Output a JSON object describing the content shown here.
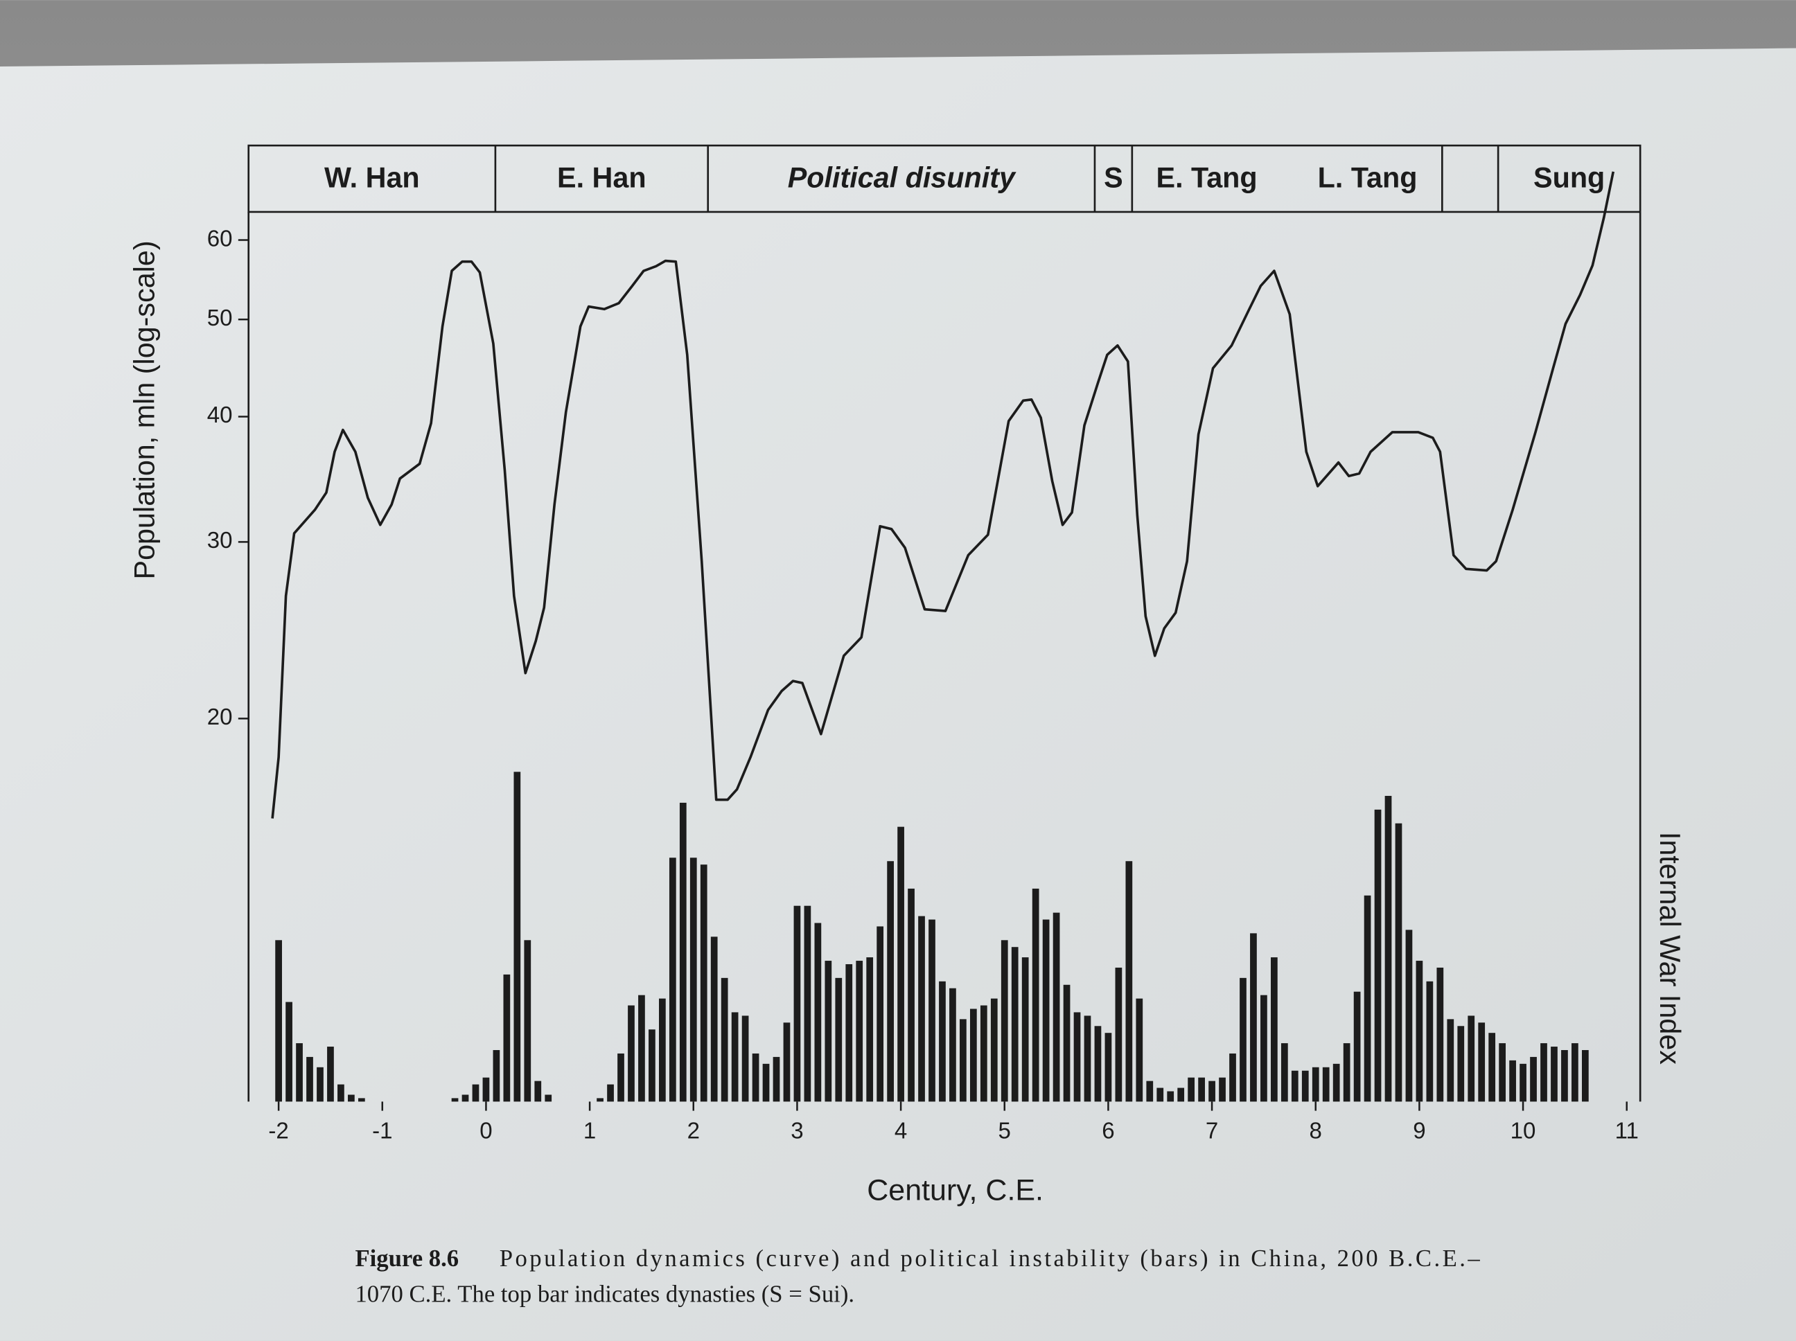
{
  "chart_data": [
    {
      "type": "line",
      "color": "#1c1c1c",
      "log_y": true,
      "y_label": "Population, mln (log-scale)",
      "x_label": "Century, C.E.",
      "xlim": [
        -2.29,
        11.13
      ],
      "ylim": [
        8.3,
        64
      ],
      "xticks": [
        -2,
        -1,
        0,
        1,
        2,
        3,
        4,
        5,
        6,
        7,
        8,
        9,
        10,
        11
      ],
      "yticks": [
        20,
        30,
        40,
        50,
        60
      ],
      "x": [
        -2.06,
        -2.0,
        -1.93,
        -1.85,
        -1.65,
        -1.54,
        -1.46,
        -1.38,
        -1.26,
        -1.14,
        -1.02,
        -0.91,
        -0.83,
        -0.64,
        -0.53,
        -0.42,
        -0.33,
        -0.23,
        -0.14,
        -0.06,
        0.07,
        0.18,
        0.27,
        0.38,
        0.48,
        0.56,
        0.66,
        0.77,
        0.91,
        0.99,
        1.14,
        1.28,
        1.41,
        1.52,
        1.64,
        1.73,
        1.83,
        1.94,
        2.08,
        2.22,
        2.33,
        2.42,
        2.55,
        2.72,
        2.85,
        2.96,
        3.05,
        3.23,
        3.45,
        3.62,
        3.8,
        3.91,
        4.04,
        4.23,
        4.43,
        4.65,
        4.84,
        5.04,
        5.18,
        5.26,
        5.35,
        5.46,
        5.56,
        5.65,
        5.77,
        5.9,
        5.99,
        6.09,
        6.19,
        6.28,
        6.36,
        6.45,
        6.54,
        6.65,
        6.76,
        6.87,
        7.01,
        7.19,
        7.36,
        7.47,
        7.6,
        7.75,
        7.91,
        8.02,
        8.22,
        8.32,
        8.42,
        8.53,
        8.74,
        8.99,
        9.13,
        9.2,
        9.33,
        9.45,
        9.65,
        9.74,
        9.9,
        10.12,
        10.29,
        10.41,
        10.55,
        10.67,
        10.78,
        10.87
      ],
      "values": [
        15.9,
        18.3,
        26.5,
        30.6,
        32.3,
        33.6,
        36.9,
        38.8,
        36.9,
        33.2,
        31.2,
        32.7,
        34.7,
        35.9,
        39.4,
        49.2,
        55.9,
        57.1,
        57.1,
        55.7,
        47.3,
        35.4,
        26.5,
        22.2,
        23.9,
        25.8,
        32.7,
        40.4,
        49.2,
        51.5,
        51.2,
        51.9,
        54.0,
        55.9,
        56.5,
        57.2,
        57.1,
        46.1,
        28.7,
        16.6,
        16.6,
        17.0,
        18.3,
        20.4,
        21.3,
        21.8,
        21.7,
        19.3,
        23.1,
        24.1,
        31.1,
        30.9,
        29.6,
        25.7,
        25.6,
        29.1,
        30.5,
        39.6,
        41.5,
        41.6,
        39.9,
        34.5,
        31.2,
        32.1,
        39.2,
        43.2,
        46.1,
        47.1,
        45.4,
        31.9,
        25.3,
        23.1,
        24.6,
        25.5,
        28.7,
        38.4,
        44.7,
        47.1,
        51.2,
        54.0,
        55.9,
        50.6,
        36.9,
        34.1,
        36.0,
        34.9,
        35.1,
        36.9,
        38.6,
        38.6,
        38.1,
        36.9,
        29.1,
        28.2,
        28.1,
        28.7,
        32.3,
        38.6,
        44.7,
        49.5,
        52.9,
        56.6,
        63.2,
        70.2
      ],
      "dividers": [
        0.09,
        2.14,
        5.87,
        6.23,
        9.22,
        9.76
      ],
      "dynasties": [
        {
          "label": "W. Han",
          "start": -2.29,
          "end": 0.09
        },
        {
          "label": "E. Han",
          "start": 0.09,
          "end": 2.14
        },
        {
          "label": "Political disunity",
          "start": 2.14,
          "end": 5.87,
          "italic": true
        },
        {
          "label": "S",
          "start": 5.87,
          "end": 6.23
        },
        {
          "label": "E. Tang",
          "start": 6.23,
          "end": 7.67
        },
        {
          "label": "L. Tang",
          "start": 7.78,
          "end": 9.22
        },
        {
          "label": "Sung",
          "start": 9.76,
          "end": 11.13
        }
      ]
    },
    {
      "type": "bar",
      "color": "#1c1c1c",
      "y_label": "Internal War Index",
      "xlim": [
        -2.29,
        11.13
      ],
      "ylim": [
        0,
        259
      ],
      "x": [
        -2,
        -1.9,
        -1.8,
        -1.7,
        -1.6,
        -1.5,
        -1.4,
        -1.3,
        -1.2,
        -1.1,
        -1,
        -0.9,
        -0.8,
        -0.7,
        -0.6,
        -0.5,
        -0.4,
        -0.3,
        -0.2,
        -0.1,
        0,
        0.1,
        0.2,
        0.3,
        0.4,
        0.5,
        0.6,
        0.7,
        0.8,
        0.9,
        1,
        1.1,
        1.2,
        1.3,
        1.4,
        1.5,
        1.6,
        1.7,
        1.8,
        1.9,
        2,
        2.1,
        2.2,
        2.3,
        2.4,
        2.5,
        2.6,
        2.7,
        2.8,
        2.9,
        3,
        3.1,
        3.2,
        3.3,
        3.4,
        3.5,
        3.6,
        3.7,
        3.8,
        3.9,
        4,
        4.1,
        4.2,
        4.3,
        4.4,
        4.5,
        4.6,
        4.7,
        4.8,
        4.9,
        5,
        5.1,
        5.2,
        5.3,
        5.4,
        5.5,
        5.6,
        5.7,
        5.8,
        5.9,
        6,
        6.1,
        6.2,
        6.3,
        6.4,
        6.5,
        6.6,
        6.7,
        6.8,
        6.9,
        7,
        7.1,
        7.2,
        7.3,
        7.4,
        7.5,
        7.6,
        7.7,
        7.8,
        7.9,
        8,
        8.1,
        8.2,
        8.3,
        8.4,
        8.5,
        8.6,
        8.7,
        8.8,
        8.9,
        9,
        9.1,
        9.2,
        9.3,
        9.4,
        9.5,
        9.6,
        9.7,
        9.8,
        9.9,
        10,
        10.1,
        10.2,
        10.3,
        10.4,
        10.5,
        10.6
      ],
      "values": [
        47,
        29,
        17,
        13,
        10,
        16,
        5,
        2,
        1,
        0,
        0,
        0,
        0,
        0,
        0,
        0,
        0,
        1,
        2,
        5,
        7,
        15,
        37,
        96,
        47,
        6,
        2,
        0,
        0,
        0,
        0,
        1,
        5,
        14,
        28,
        31,
        21,
        30,
        71,
        87,
        71,
        69,
        48,
        36,
        26,
        25,
        14,
        11,
        13,
        23,
        57,
        57,
        52,
        41,
        36,
        40,
        41,
        42,
        51,
        70,
        80,
        62,
        54,
        53,
        35,
        33,
        24,
        27,
        28,
        30,
        47,
        45,
        42,
        62,
        53,
        55,
        34,
        26,
        25,
        22,
        20,
        39,
        70,
        30,
        6,
        4,
        3,
        4,
        7,
        7,
        6,
        7,
        14,
        36,
        49,
        31,
        42,
        17,
        9,
        9,
        10,
        10,
        11,
        17,
        32,
        60,
        85,
        89,
        81,
        50,
        41,
        35,
        39,
        24,
        22,
        25,
        23,
        20,
        17,
        12,
        11,
        13,
        17,
        16,
        15,
        17,
        15
      ]
    }
  ],
  "caption": {
    "label": "Figure 8.6",
    "lines": [
      "Population dynamics (curve) and political instability (bars) in China, 200 B.C.E.–",
      "1070 C.E. The top bar indicates dynasties (S = Sui)."
    ]
  }
}
